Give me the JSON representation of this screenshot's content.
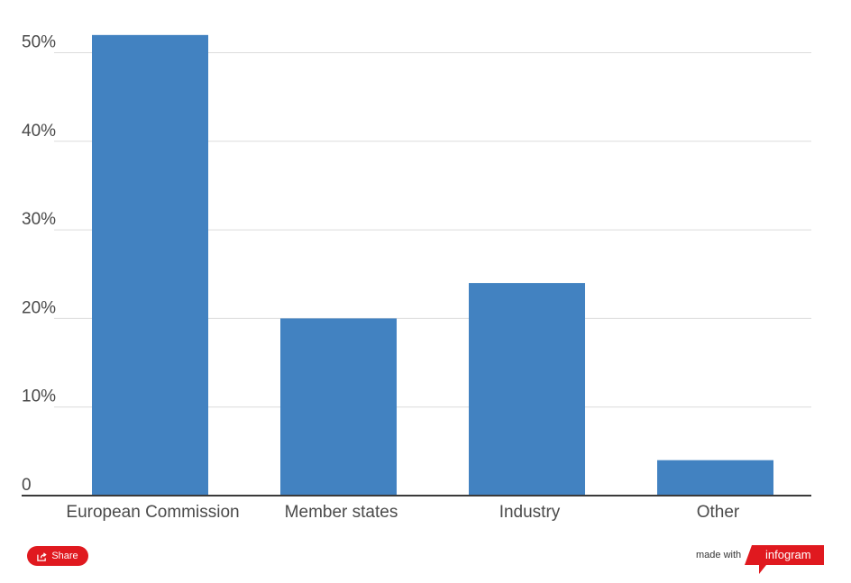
{
  "chart_data": {
    "type": "bar",
    "categories": [
      "European Commission",
      "Member states",
      "Industry",
      "Other"
    ],
    "values": [
      52,
      20,
      24,
      4
    ],
    "yticks": [
      "0",
      "10%",
      "20%",
      "30%",
      "40%",
      "50%"
    ],
    "ylim": [
      0,
      50
    ],
    "grid": true,
    "bar_color": "#4282c1"
  },
  "footer": {
    "share_label": "Share",
    "made_with": "made with",
    "brand": "infogram",
    "share_color": "#e0191f"
  }
}
